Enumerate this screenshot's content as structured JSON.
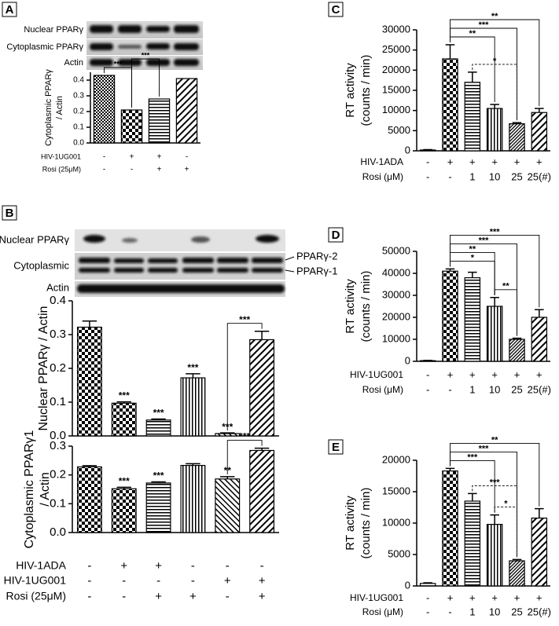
{
  "panel_labels": [
    "A",
    "B",
    "C",
    "D",
    "E"
  ],
  "blots": {
    "A": {
      "rows": [
        "Nuclear PPARγ",
        "Cytoplasmic PPARγ",
        "Actin"
      ]
    },
    "B": {
      "rows": [
        "Nuclear PPARγ",
        "Cytoplasmic",
        "Actin"
      ],
      "bands": [
        "PPARγ-2",
        "PPARγ-1"
      ]
    }
  },
  "chart_data": [
    {
      "type": "bar",
      "ylabel": [
        "Cytoplasmic PPARγ",
        "/ Actin"
      ],
      "ylim": [
        0,
        0.45
      ],
      "yticks": [
        {
          "value": 0,
          "label": "0.0"
        },
        0.1,
        0.2,
        0.3,
        0.4
      ],
      "values": [
        0.43,
        0.21,
        0.28,
        0.41
      ],
      "patterns": [
        "check-fine",
        "check",
        "hlines",
        "diag"
      ],
      "color": "#000000",
      "brackets": [
        {
          "text": "***",
          "between": [
            0,
            1
          ]
        },
        {
          "text": "***",
          "between": [
            1,
            2
          ]
        }
      ],
      "conditions": [
        {
          "label": "HIV-1UG001",
          "marks": [
            "-",
            "+",
            "+",
            "-"
          ]
        },
        {
          "label": "Rosi (25μM)",
          "marks": [
            "-",
            "-",
            "+",
            "+"
          ]
        }
      ]
    },
    {
      "type": "bar",
      "ylabel": [
        "Nuclear PPARγ / Actin"
      ],
      "ylim": [
        0,
        0.4
      ],
      "yticks": [
        {
          "value": 0,
          "label": "0.0"
        },
        0.1,
        0.2,
        0.3,
        0.4
      ],
      "values": [
        0.322,
        0.097,
        0.047,
        0.172,
        0.007,
        0.285
      ],
      "errors": [
        0.018,
        0.004,
        0.003,
        0.012,
        0.002,
        0.025
      ],
      "patterns": [
        "check",
        "check",
        "hlines",
        "vlines",
        "diag-back",
        "diag"
      ],
      "color": "#000000",
      "star_labels": [
        null,
        "***",
        "***",
        "***",
        "***",
        null
      ],
      "brackets": [
        {
          "text": "***",
          "between": [
            4,
            5
          ]
        }
      ]
    },
    {
      "type": "bar",
      "ylabel": [
        "Cytoplasmic PPARγ1",
        "/ Actin"
      ],
      "ylim": [
        0,
        0.3
      ],
      "yticks": [
        {
          "value": 0,
          "label": "0.0"
        },
        0.1,
        0.2,
        0.3
      ],
      "values": [
        0.228,
        0.152,
        0.172,
        0.233,
        0.186,
        0.285
      ],
      "errors": [
        0.004,
        0.005,
        0.004,
        0.006,
        0.008,
        0.008
      ],
      "patterns": [
        "check",
        "check",
        "hlines",
        "vlines",
        "diag-back",
        "diag"
      ],
      "color": "#000000",
      "star_labels": [
        null,
        "***",
        "***",
        null,
        "**",
        null
      ],
      "brackets": [
        {
          "text": "***",
          "between": [
            4,
            5
          ]
        }
      ],
      "conditions": [
        {
          "label": "HIV-1ADA",
          "marks": [
            "-",
            "+",
            "+",
            "-",
            "-",
            "-"
          ]
        },
        {
          "label": "HIV-1UG001",
          "marks": [
            "-",
            "-",
            "-",
            "-",
            "+",
            "+"
          ]
        },
        {
          "label": "Rosi (25μM)",
          "marks": [
            "-",
            "-",
            "+",
            "+",
            "-",
            "+"
          ]
        }
      ]
    },
    {
      "type": "bar",
      "ylabel": [
        "RT activity",
        "(counts / min)"
      ],
      "ylim": [
        0,
        30000
      ],
      "yticks": [
        0,
        5000,
        10000,
        15000,
        20000,
        25000,
        30000
      ],
      "values": [
        200,
        22800,
        17000,
        10500,
        6700,
        9500
      ],
      "errors": [
        100,
        3500,
        2500,
        1000,
        300,
        1000
      ],
      "patterns": [
        "white",
        "check",
        "hlines",
        "vlines",
        "diag-dense",
        "diag"
      ],
      "color": "#000000",
      "brackets": [
        {
          "text": "*",
          "between": [
            2,
            4
          ],
          "dashed": true
        },
        {
          "text": "**",
          "between": [
            1,
            3
          ]
        },
        {
          "text": "***",
          "between": [
            1,
            4
          ]
        },
        {
          "text": "**",
          "between": [
            1,
            5
          ]
        }
      ],
      "conditions": [
        {
          "label": "HIV-1ADA",
          "marks": [
            "-",
            "+",
            "+",
            "+",
            "+",
            "+"
          ]
        },
        {
          "label": "Rosi (μM)",
          "marks": [
            "-",
            "-",
            "1",
            "10",
            "25",
            "25(#)"
          ]
        }
      ]
    },
    {
      "type": "bar",
      "ylabel": [
        "RT activity",
        "(counts / min)"
      ],
      "ylim": [
        0,
        50000
      ],
      "yticks": [
        0,
        10000,
        20000,
        30000,
        40000,
        50000
      ],
      "values": [
        300,
        41000,
        38000,
        25000,
        10000,
        20000
      ],
      "errors": [
        100,
        1000,
        2500,
        4000,
        500,
        3500
      ],
      "patterns": [
        "white",
        "check",
        "hlines",
        "vlines",
        "diag-dense",
        "diag"
      ],
      "color": "#000000",
      "brackets": [
        {
          "text": "**",
          "between": [
            3,
            4
          ]
        },
        {
          "text": "*",
          "between": [
            1,
            3
          ]
        },
        {
          "text": "**",
          "between": [
            1,
            3
          ]
        },
        {
          "text": "***",
          "between": [
            1,
            4
          ]
        },
        {
          "text": "***",
          "between": [
            1,
            5
          ]
        }
      ],
      "conditions": [
        {
          "label": "HIV-1UG001",
          "marks": [
            "-",
            "+",
            "+",
            "+",
            "+",
            "+"
          ]
        },
        {
          "label": "Rosi (μM)",
          "marks": [
            "-",
            "-",
            "1",
            "10",
            "25",
            "25(#)"
          ]
        }
      ]
    },
    {
      "type": "bar",
      "ylabel": [
        "RT activity",
        "(counts / min)"
      ],
      "ylim": [
        0,
        20000
      ],
      "yticks": [
        0,
        5000,
        10000,
        15000,
        20000
      ],
      "values": [
        400,
        18300,
        13500,
        9800,
        4000,
        10800
      ],
      "errors": [
        100,
        400,
        1200,
        1500,
        200,
        1500
      ],
      "patterns": [
        "white",
        "check",
        "hlines",
        "vlines",
        "diag-dense",
        "diag"
      ],
      "color": "#000000",
      "brackets": [
        {
          "text": "*",
          "between": [
            3,
            4
          ],
          "dashed": true
        },
        {
          "text": "***",
          "between": [
            2,
            4
          ],
          "dashed": true
        },
        {
          "text": "***",
          "between": [
            1,
            3
          ]
        },
        {
          "text": "***",
          "between": [
            1,
            4
          ]
        },
        {
          "text": "**",
          "between": [
            1,
            5
          ]
        }
      ],
      "conditions": [
        {
          "label": "HIV-1UG001",
          "marks": [
            "-",
            "+",
            "+",
            "+",
            "+",
            "+"
          ]
        },
        {
          "label": "Rosi (μM)",
          "marks": [
            "-",
            "-",
            "1",
            "10",
            "25",
            "25(#)"
          ]
        }
      ]
    }
  ]
}
